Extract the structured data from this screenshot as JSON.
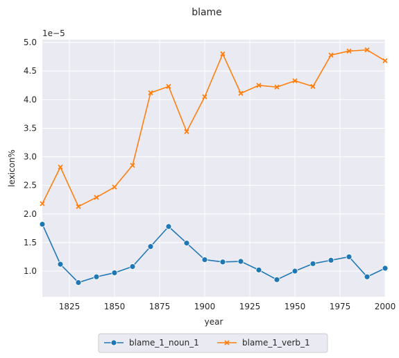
{
  "chart_data": {
    "type": "line",
    "title": "blame",
    "xlabel": "year",
    "ylabel": "lexicon%",
    "y_scale_note": "1e−5",
    "xlim": [
      1810,
      2000
    ],
    "ylim": [
      0.55,
      5.05
    ],
    "x_ticks": [
      1825,
      1850,
      1875,
      1900,
      1925,
      1950,
      1975,
      2000
    ],
    "y_ticks": [
      1.0,
      1.5,
      2.0,
      2.5,
      3.0,
      3.5,
      4.0,
      4.5,
      5.0
    ],
    "y_tick_labels": [
      "1.0",
      "1.5",
      "2.0",
      "2.5",
      "3.0",
      "3.5",
      "4.0",
      "4.5",
      "5.0"
    ],
    "x": [
      1810,
      1820,
      1830,
      1840,
      1850,
      1860,
      1870,
      1880,
      1890,
      1900,
      1910,
      1920,
      1930,
      1940,
      1950,
      1960,
      1970,
      1980,
      1990,
      2000
    ],
    "series": [
      {
        "name": "blame_1_noun_1",
        "color": "#1f77b4",
        "marker": "circle",
        "values": [
          1.82,
          1.12,
          0.8,
          0.9,
          0.97,
          1.08,
          1.43,
          1.78,
          1.49,
          1.2,
          1.16,
          1.17,
          1.02,
          0.85,
          1.0,
          1.13,
          1.19,
          1.25,
          0.9,
          1.05
        ]
      },
      {
        "name": "blame_1_verb_1",
        "color": "#ff7f0e",
        "marker": "x",
        "values": [
          2.18,
          2.82,
          2.13,
          2.29,
          2.47,
          2.85,
          4.12,
          4.23,
          3.44,
          4.05,
          4.8,
          4.11,
          4.25,
          4.22,
          4.33,
          4.23,
          4.78,
          4.85,
          4.87,
          4.68
        ]
      }
    ],
    "grid": true,
    "legend": "bottom-center"
  }
}
